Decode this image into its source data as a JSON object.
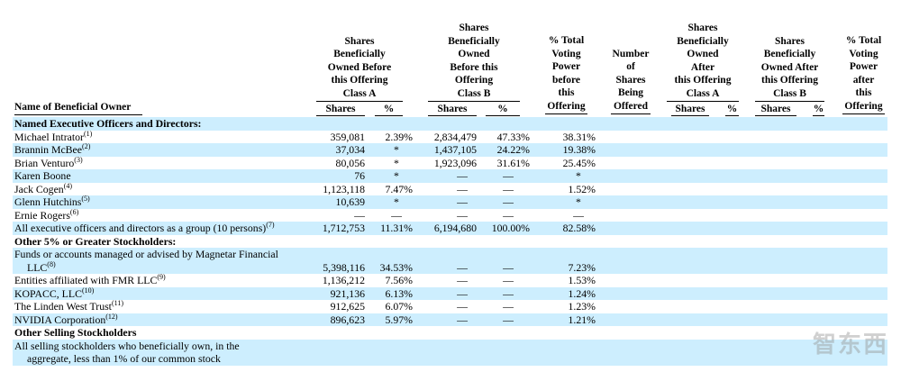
{
  "header": {
    "name_col": "Name of Beneficial Owner",
    "before_class_a": "Shares\nBeneficially\nOwned Before\nthis Offering\nClass A",
    "before_class_b": "Shares\nBeneficially\nOwned\nBefore this\nOffering\nClass B",
    "voting_before": "% Total\nVoting\nPower\nbefore\nthis\nOffering",
    "shares_offered": "Number\nof\nShares\nBeing\nOffered",
    "after_class_a": "Shares\nBeneficially\nOwned\nAfter\nthis Offering\nClass A",
    "after_class_b": "Shares\nBeneficially\nOwned After\nthis Offering\nClass B",
    "voting_after": "% Total\nVoting\nPower\nafter\nthis\nOffering",
    "shares_label": "Shares",
    "pct_label": "%"
  },
  "rows": [
    {
      "type": "section",
      "name": "Named Executive Officers and Directors:"
    },
    {
      "name": "Michael Intrator",
      "fn": "(1)",
      "a_shares": "359,081",
      "a_pct": "2.39%",
      "b_shares": "2,834,479",
      "b_pct": "47.33%",
      "voting": "38.31%"
    },
    {
      "name": "Brannin McBee",
      "fn": "(2)",
      "a_shares": "37,034",
      "a_pct": "*",
      "b_shares": "1,437,105",
      "b_pct": "24.22%",
      "voting": "19.38%"
    },
    {
      "name": "Brian Venturo",
      "fn": "(3)",
      "a_shares": "80,056",
      "a_pct": "*",
      "b_shares": "1,923,096",
      "b_pct": "31.61%",
      "voting": "25.45%"
    },
    {
      "name": "Karen Boone",
      "fn": "",
      "a_shares": "76",
      "a_pct": "*",
      "b_shares": "—",
      "b_pct": "—",
      "voting": "*"
    },
    {
      "name": "Jack Cogen",
      "fn": "(4)",
      "a_shares": "1,123,118",
      "a_pct": "7.47%",
      "b_shares": "—",
      "b_pct": "—",
      "voting": "1.52%"
    },
    {
      "name": "Glenn Hutchins",
      "fn": "(5)",
      "a_shares": "10,639",
      "a_pct": "*",
      "b_shares": "—",
      "b_pct": "—",
      "voting": "*"
    },
    {
      "name": "Ernie Rogers",
      "fn": "(6)",
      "a_shares": "—",
      "a_pct": "—",
      "b_shares": "—",
      "b_pct": "—",
      "voting": "—"
    },
    {
      "name": "All executive officers and directors as a group (10 persons)",
      "fn": "(7)",
      "a_shares": "1,712,753",
      "a_pct": "11.31%",
      "b_shares": "6,194,680",
      "b_pct": "100.00%",
      "voting": "82.58%"
    },
    {
      "type": "section",
      "name": "Other 5% or Greater Stockholders:"
    },
    {
      "name": "Funds or accounts managed or advised by Magnetar Financial",
      "name2": "LLC",
      "fn": "(8)",
      "a_shares": "5,398,116",
      "a_pct": "34.53%",
      "b_shares": "—",
      "b_pct": "—",
      "voting": "7.23%"
    },
    {
      "name": "Entities affiliated with FMR LLC",
      "fn": "(9)",
      "a_shares": "1,136,212",
      "a_pct": "7.56%",
      "b_shares": "—",
      "b_pct": "—",
      "voting": "1.53%"
    },
    {
      "name": "KOPACC, LLC",
      "fn": "(10)",
      "a_shares": "921,136",
      "a_pct": "6.13%",
      "b_shares": "—",
      "b_pct": "—",
      "voting": "1.24%"
    },
    {
      "name": "The Linden West Trust",
      "fn": "(11)",
      "a_shares": "912,625",
      "a_pct": "6.07%",
      "b_shares": "—",
      "b_pct": "—",
      "voting": "1.23%"
    },
    {
      "name": "NVIDIA Corporation",
      "fn": "(12)",
      "a_shares": "896,623",
      "a_pct": "5.97%",
      "b_shares": "—",
      "b_pct": "—",
      "voting": "1.21%"
    },
    {
      "type": "section",
      "name": "Other Selling Stockholders"
    },
    {
      "name": "All selling stockholders who beneficially own, in the",
      "name2": "aggregate, less than 1% of our common stock",
      "fn": ""
    }
  ],
  "watermark": "智东西",
  "colors": {
    "row_shade": "#cdeefe"
  }
}
